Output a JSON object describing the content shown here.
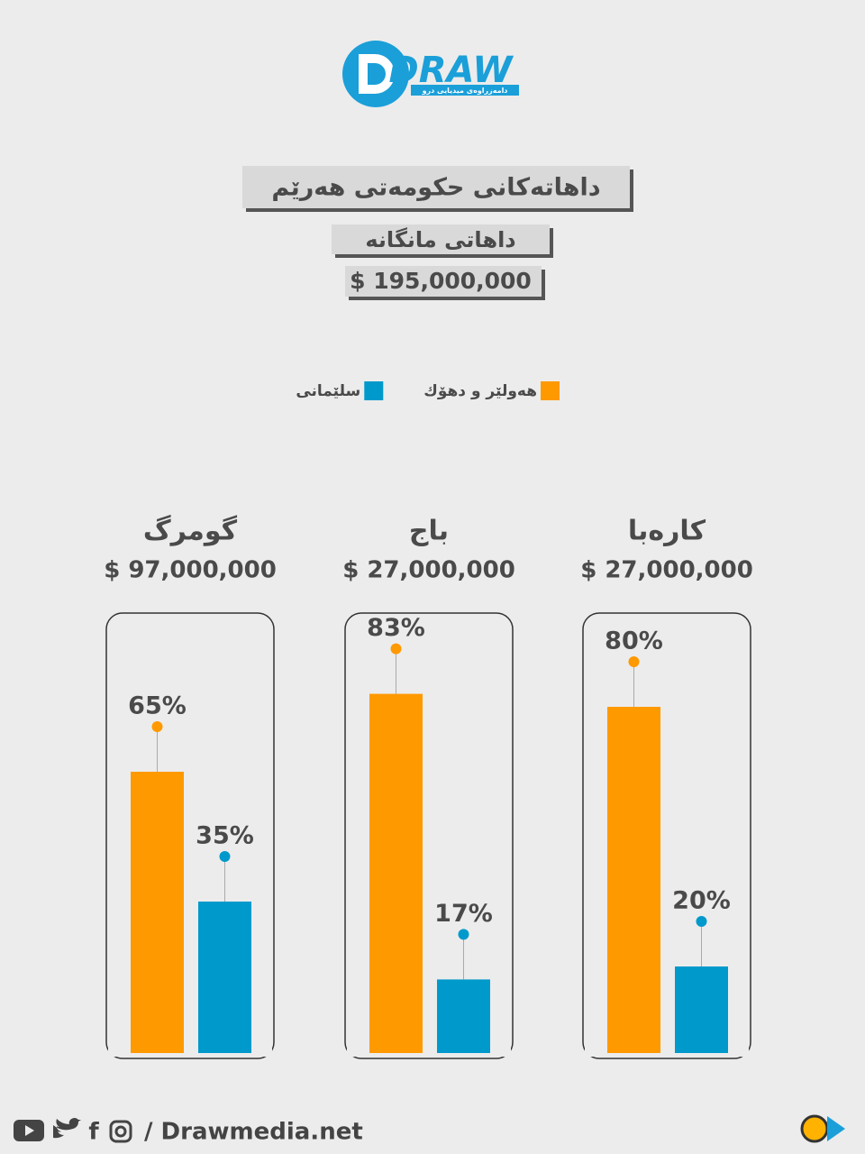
{
  "header": {
    "logo": "DRAW",
    "logo_tagline": "دامەزراوەی میدیایی درو"
  },
  "chart_data": {
    "type": "bar",
    "title": "داهاتەکانی حکومەتی هەرێم",
    "subtitle": "داهاتی مانگانە",
    "total": "$ 195,000,000",
    "categories": [
      "گومرگ",
      "باج",
      "کارەبا"
    ],
    "category_labels": [
      "$ 97,000,000",
      "$ 27,000,000",
      "$ 27,000,000"
    ],
    "series": [
      {
        "name": "هەولێر و دهۆك",
        "color": "#ff9900",
        "values": [
          65,
          83,
          80
        ],
        "value_labels": [
          "65%",
          "83%",
          "80%"
        ]
      },
      {
        "name": "سلێمانی",
        "color": "#0099cc",
        "values": [
          35,
          17,
          20
        ],
        "value_labels": [
          "35%",
          "17%",
          "20%"
        ]
      }
    ],
    "ylim": [
      0,
      100
    ]
  },
  "footer": {
    "site": "/ Drawmedia.net"
  }
}
